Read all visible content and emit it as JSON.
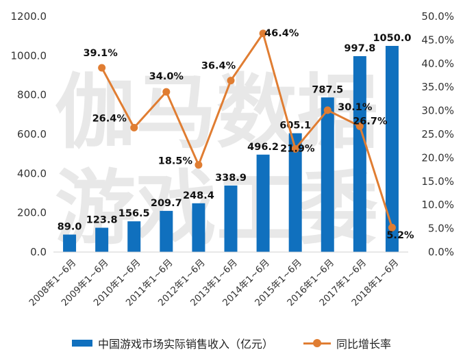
{
  "chart_data": {
    "type": "bar+line",
    "title": "",
    "categories": [
      "2008年1~6月",
      "2009年1~6月",
      "2010年1~6月",
      "2011年1~6月",
      "2012年1~6月",
      "2013年1~6月",
      "2014年1~6月",
      "2015年1~6月",
      "2016年1~6月",
      "2017年1~6月",
      "2018年1~6月"
    ],
    "series": [
      {
        "name": "中国游戏市场实际销售收入（亿元）",
        "type": "bar",
        "axis": "left",
        "color": "#1070be",
        "values": [
          89.0,
          123.8,
          156.5,
          209.7,
          248.4,
          338.9,
          496.2,
          605.1,
          787.5,
          997.8,
          1050.0
        ],
        "labels": [
          "89.0",
          "123.8",
          "156.5",
          "209.7",
          "248.4",
          "338.9",
          "496.2",
          "605.1",
          "787.5",
          "997.8",
          "1050.0"
        ]
      },
      {
        "name": "同比增长率",
        "type": "line",
        "axis": "right",
        "color": "#e07d32",
        "values": [
          null,
          39.1,
          26.4,
          34.0,
          18.5,
          36.4,
          46.4,
          21.9,
          30.1,
          26.7,
          5.2
        ],
        "labels": [
          "",
          "39.1%",
          "26.4%",
          "34.0%",
          "18.5%",
          "36.4%",
          "46.4%",
          "21.9%",
          "30.1%",
          "26.7%",
          "5.2%"
        ]
      }
    ],
    "y_left": {
      "min": 0,
      "max": 1200,
      "ticks": [
        "0.0",
        "200.0",
        "400.0",
        "600.0",
        "800.0",
        "1000.0",
        "1200.0"
      ]
    },
    "y_right": {
      "min": 0,
      "max": 50,
      "ticks": [
        "0.0%",
        "5.0%",
        "10.0%",
        "15.0%",
        "20.0%",
        "25.0%",
        "30.0%",
        "35.0%",
        "40.0%",
        "45.0%",
        "50.0%"
      ]
    },
    "grid": false,
    "legend_position": "bottom"
  },
  "watermark": {
    "line1": "伽马数据",
    "line2": "游戏工委"
  }
}
